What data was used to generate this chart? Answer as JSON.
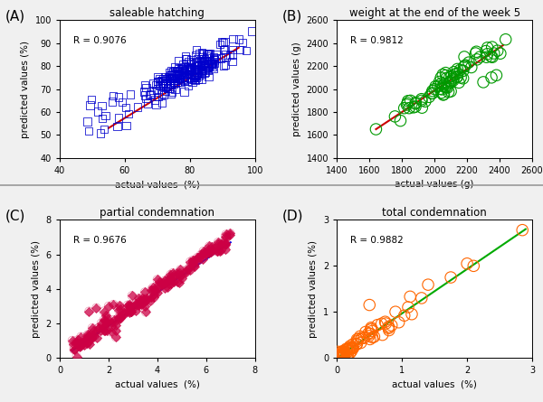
{
  "panel_A": {
    "title": "saleable hatching",
    "label": "(A)",
    "xlabel": "actual values  (%)",
    "ylabel": "predicted values (%)",
    "R": "R = 0.9076",
    "xlim": [
      40,
      100
    ],
    "ylim": [
      40,
      100
    ],
    "xticks": [
      40,
      60,
      80,
      100
    ],
    "yticks": [
      40,
      50,
      60,
      70,
      80,
      90,
      100
    ],
    "marker": "s",
    "marker_color": "#0000cc",
    "marker_size": 3,
    "line_color": "#cc0000",
    "line_x": [
      55,
      95
    ],
    "line_y": [
      53,
      88
    ]
  },
  "panel_B": {
    "title": "weight at the end of the week 5",
    "label": "(B)",
    "xlabel": "actual values (g)",
    "ylabel": "predicted values (g)",
    "R": "R = 0.9812",
    "xlim": [
      1400,
      2600
    ],
    "ylim": [
      1400,
      2600
    ],
    "xticks": [
      1400,
      1600,
      1800,
      2000,
      2200,
      2400,
      2600
    ],
    "yticks": [
      1400,
      1600,
      1800,
      2000,
      2200,
      2400,
      2600
    ],
    "marker": "o",
    "marker_color": "#009900",
    "marker_size": 4,
    "line_color": "#cc0000",
    "line_x": [
      1640,
      2420
    ],
    "line_y": [
      1650,
      2380
    ]
  },
  "panel_C": {
    "title": "partial condemnation",
    "label": "(C)",
    "xlabel": "actual values  (%)",
    "ylabel": "predicted values (%)",
    "R": "R = 0.9676",
    "xlim": [
      0,
      8
    ],
    "ylim": [
      0,
      8
    ],
    "xticks": [
      0,
      2,
      4,
      6,
      8
    ],
    "yticks": [
      0,
      2,
      4,
      6,
      8
    ],
    "marker": "D",
    "marker_color": "#cc0044",
    "marker_size": 3,
    "line_color": "#0000ee",
    "line_x": [
      0.5,
      7.0
    ],
    "line_y": [
      0.4,
      6.7
    ]
  },
  "panel_D": {
    "title": "total condemnation",
    "label": "(D)",
    "xlabel": "actual values  (%)",
    "ylabel": "predicted values (%)",
    "R": "R = 0.9882",
    "xlim": [
      0,
      3
    ],
    "ylim": [
      0,
      3
    ],
    "xticks": [
      0,
      1,
      2,
      3
    ],
    "yticks": [
      0,
      1,
      2,
      3
    ],
    "marker": "o",
    "marker_color": "#ff6600",
    "marker_size": 4,
    "line_color": "#00aa00",
    "line_x": [
      0.0,
      2.9
    ],
    "line_y": [
      0.0,
      2.8
    ]
  },
  "fig_bg": "#f0f0f0",
  "axes_bg": "#ffffff"
}
